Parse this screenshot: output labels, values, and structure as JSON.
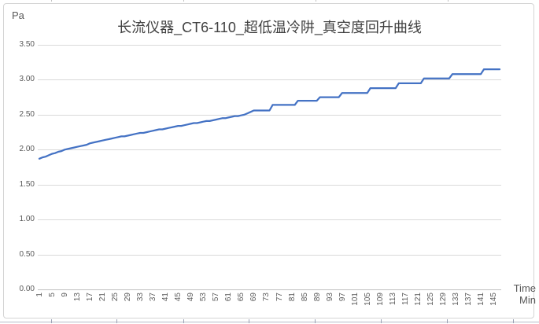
{
  "chart": {
    "title": "长流仪器_CT6-110_超低温冷阱_真空度回升曲线",
    "y_axis_title": "Pa",
    "x_axis_title_line1": "Time",
    "x_axis_title_line2": "Min",
    "colors": {
      "line": "#4472C4",
      "gridline": "#D9D9D9",
      "axis_line": "#BFBFBF",
      "tick_label": "#595959",
      "title": "#404040",
      "frame_border": "#D4D4D4",
      "sheet_line": "#B7BAC8"
    }
  },
  "chart_data": {
    "type": "line",
    "title": "长流仪器_CT6-110_超低温冷阱_真空度回升曲线",
    "xlabel": "Time Min",
    "ylabel": "Pa",
    "ylim": [
      0,
      3.5
    ],
    "ytick_labels": [
      "3.50",
      "3.00",
      "2.50",
      "2.00",
      "1.50",
      "1.00",
      "0.50",
      "0.00"
    ],
    "xtick_labels": [
      1,
      5,
      9,
      13,
      17,
      21,
      25,
      29,
      33,
      37,
      41,
      45,
      49,
      53,
      57,
      61,
      65,
      69,
      73,
      77,
      81,
      85,
      89,
      93,
      97,
      101,
      105,
      109,
      113,
      117,
      121,
      125,
      129,
      133,
      137,
      141,
      145
    ],
    "x_start": 1,
    "x_step": 1,
    "x_count": 147,
    "grid": "horizontal",
    "legend": "none",
    "values": [
      1.87,
      1.89,
      1.9,
      1.92,
      1.94,
      1.95,
      1.97,
      1.98,
      2.0,
      2.01,
      2.02,
      2.03,
      2.04,
      2.05,
      2.06,
      2.07,
      2.09,
      2.1,
      2.11,
      2.12,
      2.13,
      2.14,
      2.15,
      2.16,
      2.17,
      2.18,
      2.19,
      2.19,
      2.2,
      2.21,
      2.22,
      2.23,
      2.24,
      2.24,
      2.25,
      2.26,
      2.27,
      2.28,
      2.29,
      2.29,
      2.3,
      2.31,
      2.32,
      2.33,
      2.34,
      2.34,
      2.35,
      2.36,
      2.37,
      2.38,
      2.38,
      2.39,
      2.4,
      2.41,
      2.41,
      2.42,
      2.43,
      2.44,
      2.45,
      2.45,
      2.46,
      2.47,
      2.48,
      2.48,
      2.49,
      2.5,
      2.52,
      2.54,
      2.56,
      2.56,
      2.56,
      2.56,
      2.56,
      2.56,
      2.64,
      2.64,
      2.64,
      2.64,
      2.64,
      2.64,
      2.64,
      2.64,
      2.7,
      2.7,
      2.7,
      2.7,
      2.7,
      2.7,
      2.7,
      2.75,
      2.75,
      2.75,
      2.75,
      2.75,
      2.75,
      2.75,
      2.81,
      2.81,
      2.81,
      2.81,
      2.81,
      2.81,
      2.81,
      2.81,
      2.81,
      2.88,
      2.88,
      2.88,
      2.88,
      2.88,
      2.88,
      2.88,
      2.88,
      2.88,
      2.95,
      2.95,
      2.95,
      2.95,
      2.95,
      2.95,
      2.95,
      2.95,
      3.02,
      3.02,
      3.02,
      3.02,
      3.02,
      3.02,
      3.02,
      3.02,
      3.02,
      3.08,
      3.08,
      3.08,
      3.08,
      3.08,
      3.08,
      3.08,
      3.08,
      3.08,
      3.08,
      3.15,
      3.15,
      3.15,
      3.15,
      3.15,
      3.15
    ]
  },
  "sheet_artifacts": {
    "top_tick_x": [
      65,
      233,
      401,
      569
    ],
    "bottom_tick_x": [
      65,
      148,
      233,
      316,
      400,
      484,
      568,
      652
    ]
  }
}
